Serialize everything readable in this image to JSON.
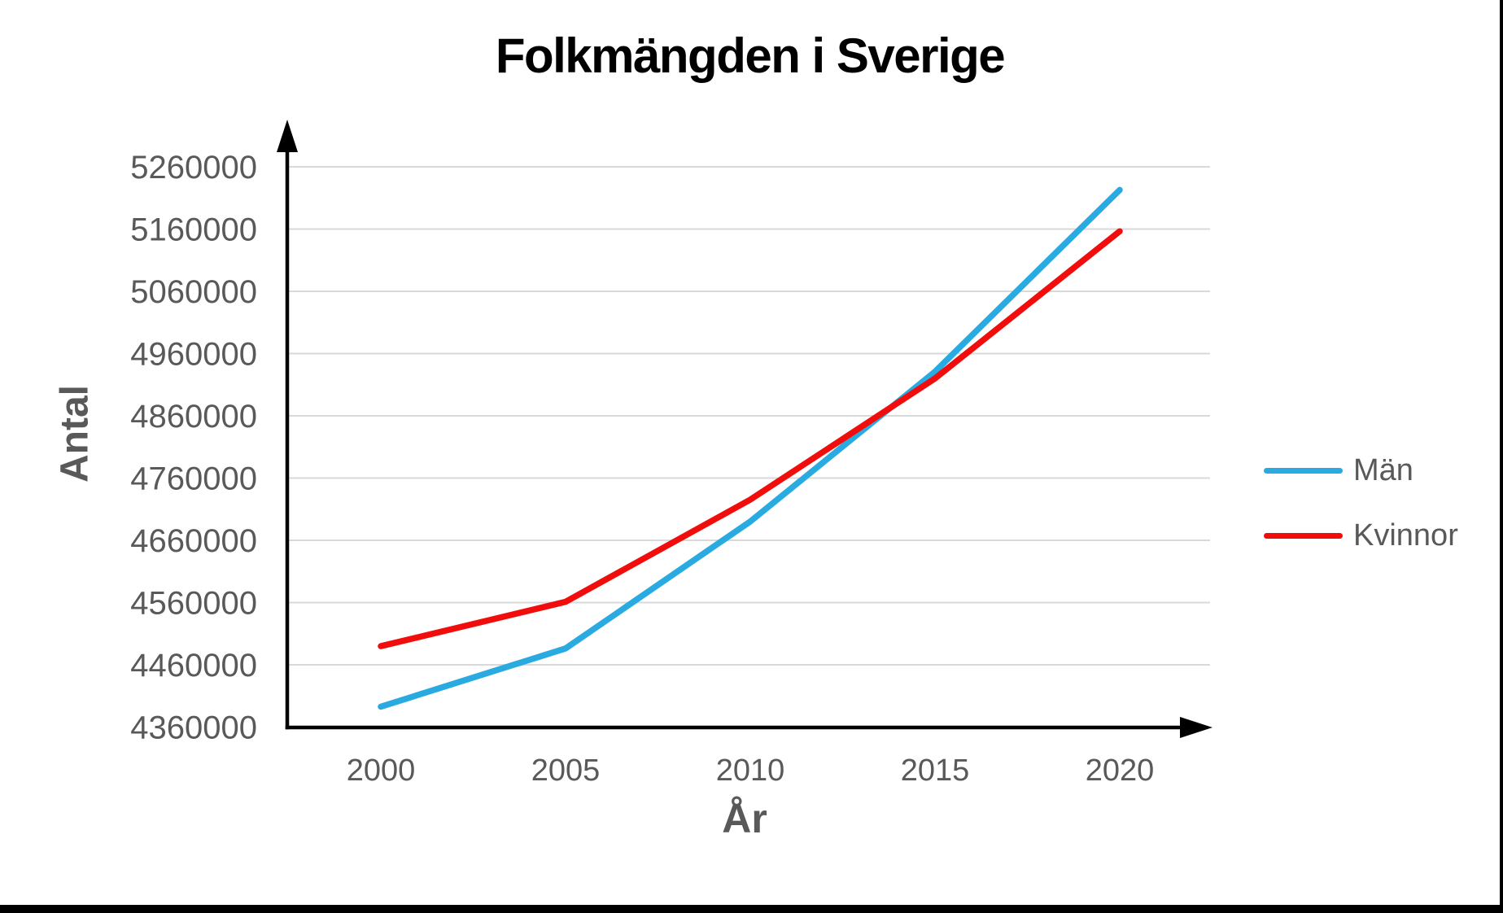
{
  "chart_data": {
    "type": "line",
    "title": "Folkmängden i Sverige",
    "xlabel": "År",
    "ylabel": "Antal",
    "categories": [
      2000,
      2005,
      2010,
      2015,
      2020
    ],
    "x_tick_labels": [
      "2000",
      "2005",
      "2010",
      "2015",
      "2020"
    ],
    "series": [
      {
        "name": "Män",
        "color": "#29abe2",
        "values": [
          4392753,
          4486305,
          4690244,
          4930966,
          5222847
        ]
      },
      {
        "name": "Kvinnor",
        "color": "#f20d0d",
        "values": [
          4489967,
          4561202,
          4725326,
          4920051,
          5156448
        ]
      }
    ],
    "ylim": [
      4360000,
      5260000
    ],
    "y_ticks": [
      4360000,
      4460000,
      4560000,
      4660000,
      4760000,
      4860000,
      4960000,
      5060000,
      5160000,
      5260000
    ],
    "y_tick_labels": [
      "4360000",
      "4460000",
      "4560000",
      "4660000",
      "4760000",
      "4860000",
      "4960000",
      "5060000",
      "5160000",
      "5260000"
    ],
    "grid": "horizontal",
    "legend_position": "right",
    "axis_color": "#000000",
    "gridline_color": "#d9d9d9",
    "tick_label_color": "#595959",
    "axis_arrows": true
  }
}
